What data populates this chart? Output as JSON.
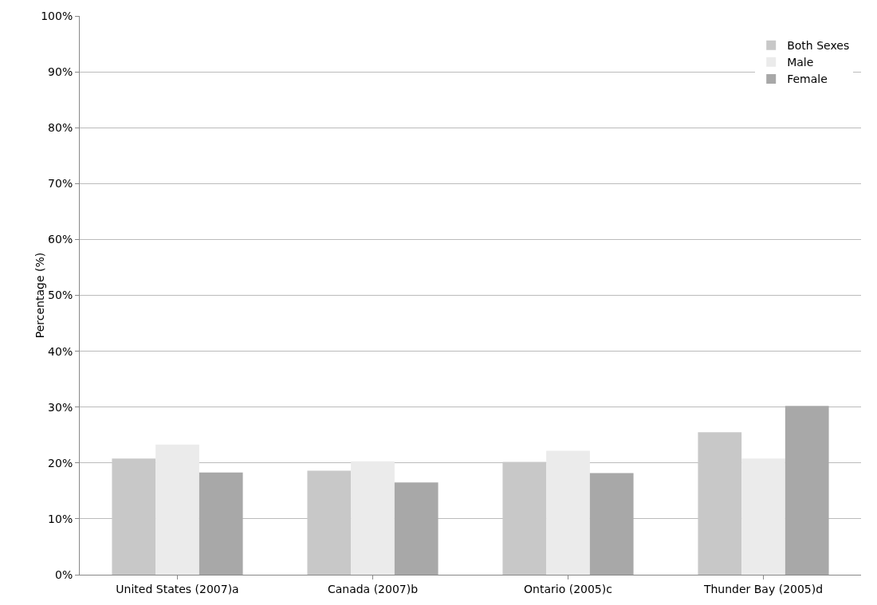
{
  "chart_data": {
    "type": "bar",
    "ylabel": "Percentage (%)",
    "categories": [
      "United States (2007)a",
      "Canada (2007)b",
      "Ontario (2005)c",
      "Thunder Bay (2005)d"
    ],
    "series": [
      {
        "name": "Both Sexes",
        "color": "#c8c8c8",
        "values": [
          20.8,
          18.6,
          20.2,
          25.5
        ]
      },
      {
        "name": "Male",
        "color": "#ebebeb",
        "values": [
          23.3,
          20.3,
          22.2,
          20.8
        ]
      },
      {
        "name": "Female",
        "color": "#a8a8a8",
        "values": [
          18.3,
          16.5,
          18.2,
          30.2
        ]
      }
    ],
    "ylim": [
      0,
      100
    ],
    "yticks": [
      {
        "value": 0,
        "label": "0%"
      },
      {
        "value": 10,
        "label": "10%"
      },
      {
        "value": 20,
        "label": "20%"
      },
      {
        "value": 30,
        "label": "30%"
      },
      {
        "value": 40,
        "label": "40%"
      },
      {
        "value": 50,
        "label": "50%"
      },
      {
        "value": 60,
        "label": "60%"
      },
      {
        "value": 70,
        "label": "70%"
      },
      {
        "value": 80,
        "label": "80%"
      },
      {
        "value": 90,
        "label": "90%"
      },
      {
        "value": 100,
        "label": "100%"
      }
    ],
    "grid": "y",
    "legend": "top right"
  }
}
